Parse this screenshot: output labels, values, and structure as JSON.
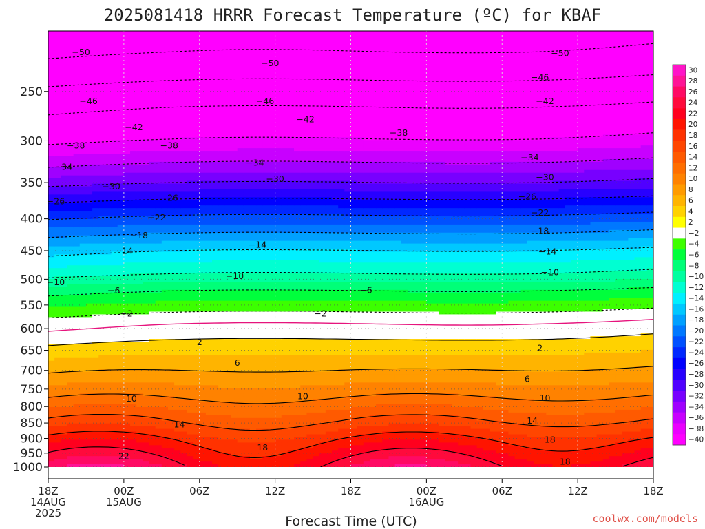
{
  "title": "2025081418 HRRR Forecast Temperature (ºC) for KBAF",
  "credit": "coolwx.com/models",
  "chart_data": {
    "type": "heatmap",
    "title": "2025081418 HRRR Forecast Temperature (ºC) for KBAF",
    "xlabel": "Forecast Time (UTC)",
    "ylabel": "",
    "x_ticks": [
      {
        "lines": [
          "18Z",
          "14AUG",
          "2025"
        ]
      },
      {
        "lines": [
          "00Z",
          "15AUG"
        ]
      },
      {
        "lines": [
          "06Z"
        ]
      },
      {
        "lines": [
          "12Z"
        ]
      },
      {
        "lines": [
          "18Z"
        ]
      },
      {
        "lines": [
          "00Z",
          "16AUG"
        ]
      },
      {
        "lines": [
          "06Z"
        ]
      },
      {
        "lines": [
          "12Z"
        ]
      },
      {
        "lines": [
          "18Z"
        ]
      }
    ],
    "xlim_hours": [
      0,
      48
    ],
    "y_ticks": [
      250,
      300,
      350,
      400,
      450,
      500,
      550,
      600,
      650,
      700,
      750,
      800,
      850,
      900,
      950,
      1000
    ],
    "ylim_hPa": [
      200,
      1010
    ],
    "y_scale": "log",
    "y_inverted": true,
    "grid": true,
    "contour_interval": 4,
    "colorbar": {
      "labels": [
        30,
        28,
        26,
        24,
        22,
        20,
        18,
        16,
        14,
        12,
        10,
        8,
        6,
        4,
        2,
        -2,
        -4,
        -6,
        -8,
        -10,
        -12,
        -14,
        -16,
        -18,
        -20,
        -22,
        -24,
        -26,
        -28,
        -30,
        -32,
        -34,
        -36,
        -38,
        -40
      ],
      "colors": [
        "#ff14c8",
        "#ff1496",
        "#ff0a64",
        "#ff0a3c",
        "#ff001e",
        "#ff1400",
        "#ff3200",
        "#ff4600",
        "#ff5a00",
        "#ff6e00",
        "#ff8200",
        "#ff9b00",
        "#ffb400",
        "#ffd200",
        "#ffff00",
        "#ffffff",
        "#3cff00",
        "#00ff3c",
        "#00ff78",
        "#00ffa0",
        "#00ffd2",
        "#00f0ff",
        "#00c8ff",
        "#00a0ff",
        "#0078ff",
        "#0050ff",
        "#0028ff",
        "#0000ff",
        "#2800ff",
        "#5000ff",
        "#7800ff",
        "#a000ff",
        "#c800ff",
        "#eb00ff",
        "#ff00ff"
      ]
    },
    "ground_color": "#a0522d",
    "freezing_line_color": "#e6147d",
    "contour_labels": [
      {
        "value": -50,
        "points": [
          [
            2.6,
            216
          ],
          [
            17.6,
            225
          ],
          [
            40.6,
            217
          ]
        ]
      },
      {
        "value": -46,
        "points": [
          [
            3.2,
            259
          ],
          [
            17.2,
            259
          ],
          [
            39.0,
            237
          ]
        ]
      },
      {
        "value": -42,
        "points": [
          [
            6.8,
            285
          ],
          [
            20.4,
            277
          ],
          [
            39.4,
            259
          ]
        ]
      },
      {
        "value": -38,
        "points": [
          [
            2.2,
            305
          ],
          [
            9.6,
            305
          ],
          [
            27.8,
            291
          ]
        ]
      },
      {
        "value": -34,
        "points": [
          [
            1.2,
            330
          ],
          [
            16.4,
            325
          ],
          [
            38.2,
            319
          ]
        ]
      },
      {
        "value": -30,
        "points": [
          [
            5.0,
            355
          ],
          [
            18.0,
            345
          ],
          [
            39.4,
            343
          ]
        ]
      },
      {
        "value": -26,
        "points": [
          [
            0.6,
            375
          ],
          [
            9.6,
            370
          ],
          [
            38.0,
            368
          ]
        ]
      },
      {
        "value": -22,
        "points": [
          [
            -2.2,
            395
          ],
          [
            8.6,
            398
          ],
          [
            39.0,
            391
          ]
        ]
      },
      {
        "value": -18,
        "points": [
          [
            7.2,
            425
          ],
          [
            39.0,
            418
          ]
        ]
      },
      {
        "value": -14,
        "points": [
          [
            -3.6,
            458
          ],
          [
            6.0,
            450
          ],
          [
            16.6,
            440
          ],
          [
            39.6,
            451
          ]
        ]
      },
      {
        "value": -10,
        "points": [
          [
            0.6,
            505
          ],
          [
            14.8,
            494
          ],
          [
            39.8,
            487
          ]
        ]
      },
      {
        "value": -6,
        "points": [
          [
            -3.0,
            525
          ],
          [
            5.2,
            521
          ],
          [
            25.2,
            520
          ]
        ]
      },
      {
        "value": -2,
        "points": [
          [
            -3.2,
            562
          ],
          [
            6.2,
            567
          ],
          [
            21.6,
            567
          ]
        ]
      },
      {
        "value": 2,
        "points": [
          [
            -1.2,
            619
          ],
          [
            12.0,
            630
          ],
          [
            39.0,
            644
          ]
        ]
      },
      {
        "value": 6,
        "points": [
          [
            -2.2,
            718
          ],
          [
            15.0,
            680
          ],
          [
            38.0,
            722
          ]
        ]
      },
      {
        "value": 10,
        "points": [
          [
            6.6,
            776
          ],
          [
            20.2,
            770
          ],
          [
            39.4,
            775
          ]
        ]
      },
      {
        "value": 14,
        "points": [
          [
            -1.2,
            836
          ],
          [
            10.4,
            854
          ],
          [
            38.4,
            842
          ]
        ]
      },
      {
        "value": 18,
        "points": [
          [
            -1.8,
            883
          ],
          [
            17.0,
            930
          ],
          [
            39.8,
            903
          ]
        ]
      },
      {
        "value": 22,
        "points": [
          [
            6.0,
            960
          ]
        ]
      },
      {
        "value": 18,
        "points": [
          [
            41.0,
            980
          ]
        ]
      }
    ]
  }
}
